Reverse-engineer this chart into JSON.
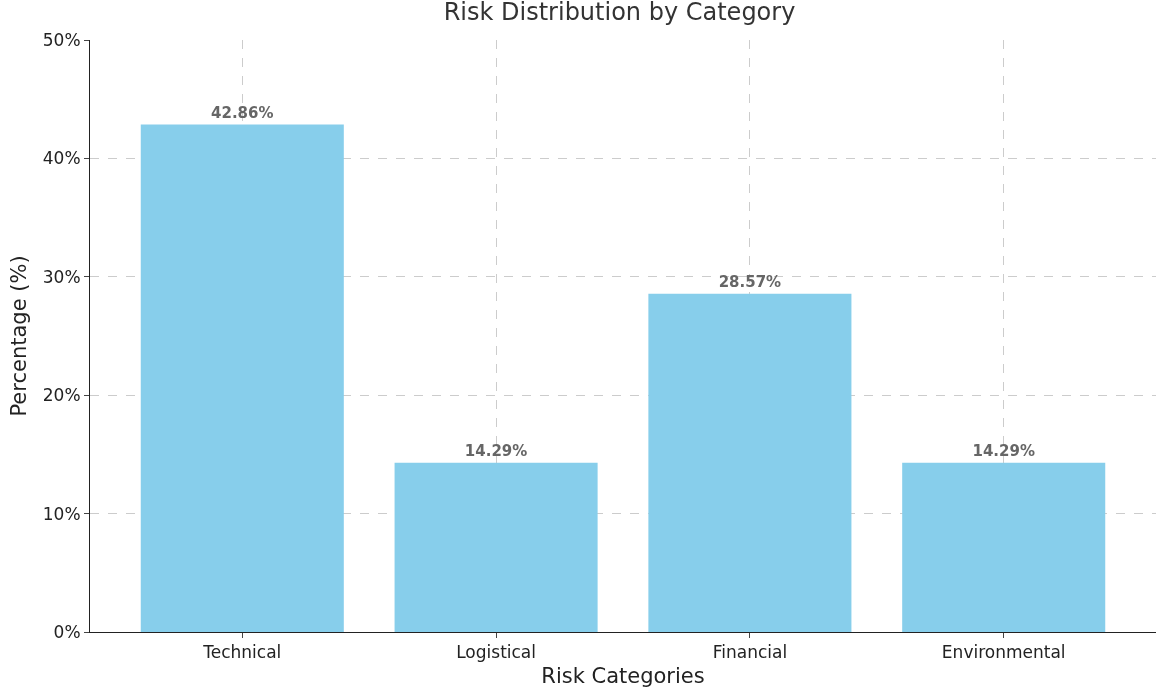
{
  "chart_data": {
    "type": "bar",
    "title": "Risk Distribution by Category",
    "xlabel": "Risk Categories",
    "ylabel": "Percentage (%)",
    "categories": [
      "Technical",
      "Logistical",
      "Financial",
      "Environmental"
    ],
    "values": [
      42.86,
      14.29,
      28.57,
      14.29
    ],
    "value_labels": [
      "42.86%",
      "14.29%",
      "28.57%",
      "14.29%"
    ],
    "color": "#87ceeb",
    "ylim": [
      0,
      50
    ],
    "yticks": [
      {
        "value": 0,
        "label": "0%"
      },
      {
        "value": 10,
        "label": "10%"
      },
      {
        "value": 20,
        "label": "20%"
      },
      {
        "value": 30,
        "label": "30%"
      },
      {
        "value": 40,
        "label": "40%"
      },
      {
        "value": 50,
        "label": "50%"
      }
    ],
    "grid": true
  }
}
